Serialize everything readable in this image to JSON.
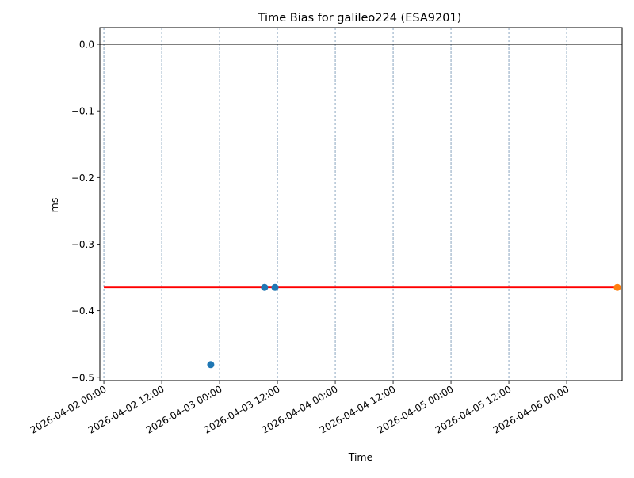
{
  "chart_data": {
    "type": "scatter",
    "title": "Time Bias for galileo224 (ESA9201)",
    "xlabel": "Time",
    "ylabel": "ms",
    "xlim": [
      "2026-04-01 23:10",
      "2026-04-06 11:30"
    ],
    "ylim": [
      -0.505,
      0.025
    ],
    "grid": "vertical dashed at major x ticks",
    "x_ticks": [
      "2026-04-02 00:00",
      "2026-04-02 12:00",
      "2026-04-03 00:00",
      "2026-04-03 12:00",
      "2026-04-04 00:00",
      "2026-04-04 12:00",
      "2026-04-05 00:00",
      "2026-04-05 12:00",
      "2026-04-06 00:00"
    ],
    "y_ticks": [
      0.0,
      -0.1,
      -0.2,
      -0.3,
      -0.4,
      -0.5
    ],
    "y_tick_labels": [
      "0.0",
      "−0.1",
      "−0.2",
      "−0.3",
      "−0.4",
      "−0.5"
    ],
    "reference_line": {
      "y": 0.0,
      "color": "#000000"
    },
    "series": [
      {
        "color": "#1f77b4",
        "points": [
          {
            "x": "2026-04-02 22:10",
            "y": -0.481
          },
          {
            "x": "2026-04-03 09:20",
            "y": -0.365
          },
          {
            "x": "2026-04-03 11:30",
            "y": -0.365
          }
        ]
      },
      {
        "color": "#ff7f0e",
        "points": [
          {
            "x": "2026-04-06 10:30",
            "y": -0.365
          }
        ]
      }
    ],
    "fit_line": {
      "color": "#ff0000",
      "x": [
        "2026-04-02 00:00",
        "2026-04-06 10:30"
      ],
      "y": [
        -0.365,
        -0.365
      ]
    }
  }
}
